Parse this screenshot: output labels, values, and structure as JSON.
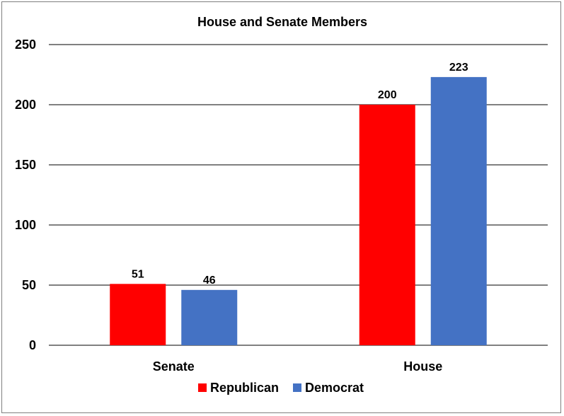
{
  "chart_data": {
    "type": "bar",
    "title": "House and Senate Members",
    "categories": [
      "Senate",
      "House"
    ],
    "series": [
      {
        "name": "Republican",
        "values": [
          51,
          200
        ],
        "color": "#ff0000"
      },
      {
        "name": "Democrat",
        "values": [
          46,
          223
        ],
        "color": "#4472c4"
      }
    ],
    "ylim": [
      0,
      250
    ],
    "yticks": [
      0,
      50,
      100,
      150,
      200,
      250
    ],
    "grid": true,
    "data_labels": true,
    "legend_position": "bottom"
  }
}
